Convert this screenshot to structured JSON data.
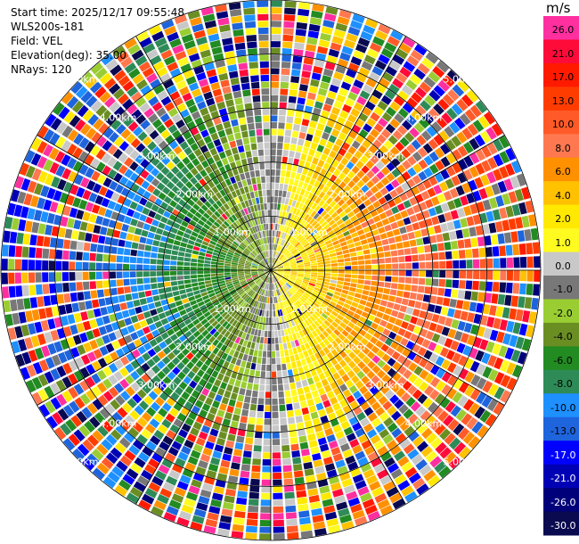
{
  "header": {
    "start_time": "Start time: 2025/12/17 09:55:48",
    "instrument": "WLS200s-181",
    "field": "Field: VEL",
    "elevation": "Elevation(deg): 35.00",
    "nrays": "NRays: 120"
  },
  "colorbar": {
    "unit": "m/s",
    "ticks": [
      "26.0",
      "21.0",
      "17.0",
      "13.0",
      "10.0",
      "8.0",
      "6.0",
      "4.0",
      "2.0",
      "1.0",
      "0.0",
      "-1.0",
      "-2.0",
      "-4.0",
      "-6.0",
      "-8.0",
      "-10.0",
      "-13.0",
      "-17.0",
      "-21.0",
      "-26.0",
      "-30.0"
    ],
    "colors": [
      "#ff2fa0",
      "#ff0b3a",
      "#ff1a00",
      "#ff3c00",
      "#ff5a28",
      "#ff7850",
      "#ff9100",
      "#ffc100",
      "#ffe900",
      "#fffa20",
      "#c8c8c8",
      "#787878",
      "#9acd32",
      "#6b8e23",
      "#228b22",
      "#2e8b57",
      "#1e90ff",
      "#1e64dc",
      "#0000ff",
      "#0000b4",
      "#00007a",
      "#0a0a50"
    ]
  },
  "chart_data": {
    "type": "ppi",
    "field": "VEL",
    "unit": "m/s",
    "nrays": 120,
    "elevation_deg": 35.0,
    "range_rings_km": [
      1.0,
      2.0,
      3.0,
      4.0,
      5.0
    ],
    "range_ring_labels": [
      "1.00km",
      "2.00km",
      "3.00km",
      "4.00km",
      "5.00km"
    ],
    "max_range_km": 5.0,
    "vmin": -30.0,
    "vmax": 30.0,
    "dominant_flow": "negative (toward) on west, positive (away) on east"
  }
}
